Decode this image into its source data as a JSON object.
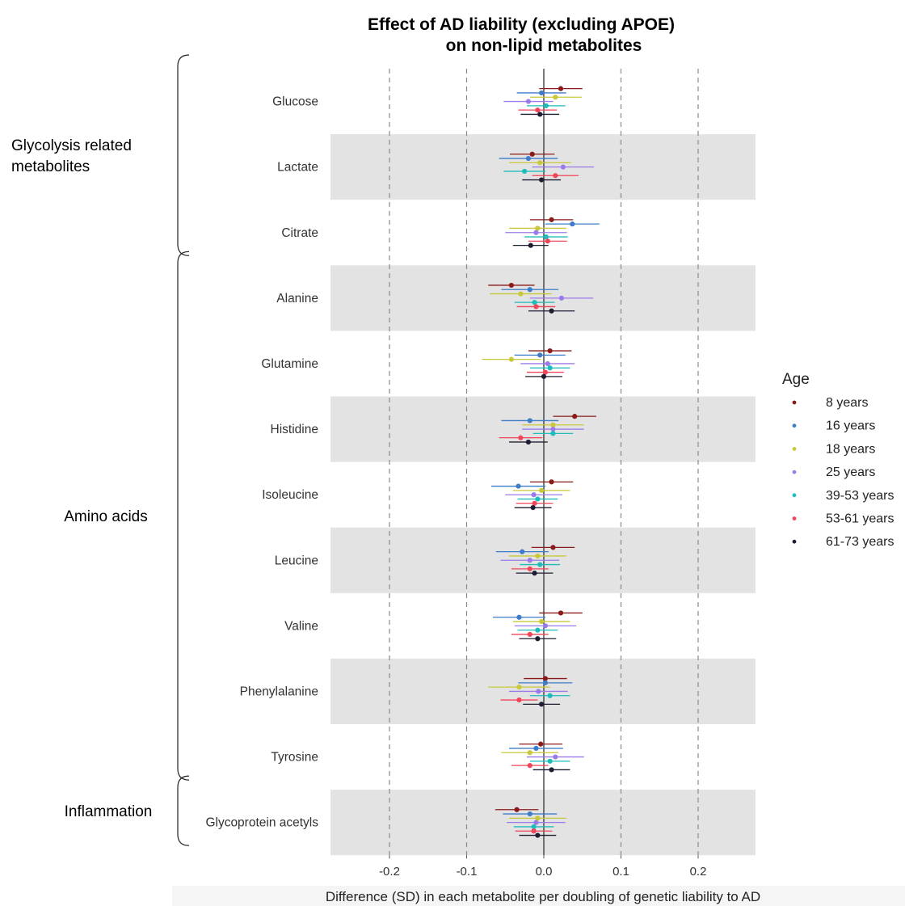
{
  "chart_data": {
    "type": "forest",
    "title_lines": [
      "Effect of AD liability (excluding APOE)",
      "on non-lipid metabolites"
    ],
    "xlabel": "Difference (SD) in each metabolite per doubling of genetic liability to AD",
    "xlim": [
      -0.28,
      0.28
    ],
    "xticks": [
      -0.2,
      -0.1,
      0.0,
      0.1,
      0.2
    ],
    "xtick_labels": [
      "-0.2",
      "-0.1",
      "0.0",
      "0.1",
      "0.2"
    ],
    "legend_title": "Age",
    "legend_position": "right",
    "series": [
      {
        "name": "8 years",
        "color": "#8b1a1a"
      },
      {
        "name": "16 years",
        "color": "#3d7cc9"
      },
      {
        "name": "18 years",
        "color": "#c8c83a"
      },
      {
        "name": "25 years",
        "color": "#9b7bea"
      },
      {
        "name": "39-53 years",
        "color": "#1fbcbc"
      },
      {
        "name": "53-61 years",
        "color": "#f2455a"
      },
      {
        "name": "61-73 years",
        "color": "#1e1e33"
      }
    ],
    "groups": [
      {
        "label": [
          "Glycolysis related",
          "metabolites"
        ],
        "first": 0,
        "last": 2
      },
      {
        "label": [
          "Amino acids"
        ],
        "first": 3,
        "last": 10
      },
      {
        "label": [
          "Inflammation"
        ],
        "first": 11,
        "last": 11
      }
    ],
    "metabolites": [
      {
        "name": "Glucose",
        "shaded": false,
        "points": [
          {
            "est": 0.022,
            "lo": -0.006,
            "hi": 0.05
          },
          {
            "est": -0.003,
            "lo": -0.035,
            "hi": 0.029
          },
          {
            "est": 0.015,
            "lo": -0.018,
            "hi": 0.049
          },
          {
            "est": -0.02,
            "lo": -0.052,
            "hi": 0.012
          },
          {
            "est": 0.003,
            "lo": -0.022,
            "hi": 0.028
          },
          {
            "est": -0.008,
            "lo": -0.033,
            "hi": 0.017
          },
          {
            "est": -0.005,
            "lo": -0.03,
            "hi": 0.02
          }
        ]
      },
      {
        "name": "Lactate",
        "shaded": true,
        "points": [
          {
            "est": -0.015,
            "lo": -0.044,
            "hi": 0.014
          },
          {
            "est": -0.02,
            "lo": -0.058,
            "hi": 0.018
          },
          {
            "est": -0.005,
            "lo": -0.045,
            "hi": 0.035
          },
          {
            "est": 0.025,
            "lo": -0.015,
            "hi": 0.065
          },
          {
            "est": -0.025,
            "lo": -0.052,
            "hi": 0.002
          },
          {
            "est": 0.015,
            "lo": -0.015,
            "hi": 0.045
          },
          {
            "est": -0.003,
            "lo": -0.028,
            "hi": 0.022
          }
        ]
      },
      {
        "name": "Citrate",
        "shaded": false,
        "points": [
          {
            "est": 0.01,
            "lo": -0.018,
            "hi": 0.038
          },
          {
            "est": 0.037,
            "lo": 0.002,
            "hi": 0.072
          },
          {
            "est": -0.008,
            "lo": -0.045,
            "hi": 0.029
          },
          {
            "est": -0.01,
            "lo": -0.05,
            "hi": 0.03
          },
          {
            "est": 0.003,
            "lo": -0.025,
            "hi": 0.031
          },
          {
            "est": 0.005,
            "lo": -0.02,
            "hi": 0.03
          },
          {
            "est": -0.017,
            "lo": -0.04,
            "hi": 0.006
          }
        ]
      },
      {
        "name": "Alanine",
        "shaded": true,
        "points": [
          {
            "est": -0.042,
            "lo": -0.072,
            "hi": -0.012
          },
          {
            "est": -0.018,
            "lo": -0.055,
            "hi": 0.019
          },
          {
            "est": -0.03,
            "lo": -0.07,
            "hi": 0.01
          },
          {
            "est": 0.023,
            "lo": -0.018,
            "hi": 0.064
          },
          {
            "est": -0.012,
            "lo": -0.038,
            "hi": 0.014
          },
          {
            "est": -0.01,
            "lo": -0.035,
            "hi": 0.015
          },
          {
            "est": 0.01,
            "lo": -0.02,
            "hi": 0.04
          }
        ]
      },
      {
        "name": "Glutamine",
        "shaded": false,
        "points": [
          {
            "est": 0.008,
            "lo": -0.02,
            "hi": 0.036
          },
          {
            "est": -0.005,
            "lo": -0.038,
            "hi": 0.028
          },
          {
            "est": -0.042,
            "lo": -0.08,
            "hi": -0.004
          },
          {
            "est": 0.005,
            "lo": -0.03,
            "hi": 0.04
          },
          {
            "est": 0.008,
            "lo": -0.018,
            "hi": 0.034
          },
          {
            "est": 0.002,
            "lo": -0.022,
            "hi": 0.026
          },
          {
            "est": 0.0,
            "lo": -0.024,
            "hi": 0.024
          }
        ]
      },
      {
        "name": "Histidine",
        "shaded": true,
        "points": [
          {
            "est": 0.04,
            "lo": 0.012,
            "hi": 0.068
          },
          {
            "est": -0.018,
            "lo": -0.055,
            "hi": 0.019
          },
          {
            "est": 0.012,
            "lo": -0.028,
            "hi": 0.052
          },
          {
            "est": 0.012,
            "lo": -0.028,
            "hi": 0.052
          },
          {
            "est": 0.012,
            "lo": -0.014,
            "hi": 0.038
          },
          {
            "est": -0.03,
            "lo": -0.058,
            "hi": -0.002
          },
          {
            "est": -0.02,
            "lo": -0.045,
            "hi": 0.005
          }
        ]
      },
      {
        "name": "Isoleucine",
        "shaded": false,
        "points": [
          {
            "est": 0.01,
            "lo": -0.018,
            "hi": 0.038
          },
          {
            "est": -0.033,
            "lo": -0.068,
            "hi": 0.002
          },
          {
            "est": -0.003,
            "lo": -0.04,
            "hi": 0.034
          },
          {
            "est": -0.013,
            "lo": -0.05,
            "hi": 0.024
          },
          {
            "est": -0.008,
            "lo": -0.034,
            "hi": 0.018
          },
          {
            "est": -0.012,
            "lo": -0.036,
            "hi": 0.012
          },
          {
            "est": -0.014,
            "lo": -0.038,
            "hi": 0.01
          }
        ]
      },
      {
        "name": "Leucine",
        "shaded": true,
        "points": [
          {
            "est": 0.012,
            "lo": -0.016,
            "hi": 0.04
          },
          {
            "est": -0.028,
            "lo": -0.062,
            "hi": 0.006
          },
          {
            "est": -0.008,
            "lo": -0.045,
            "hi": 0.029
          },
          {
            "est": -0.018,
            "lo": -0.056,
            "hi": 0.02
          },
          {
            "est": -0.005,
            "lo": -0.031,
            "hi": 0.021
          },
          {
            "est": -0.018,
            "lo": -0.042,
            "hi": 0.006
          },
          {
            "est": -0.012,
            "lo": -0.036,
            "hi": 0.012
          }
        ]
      },
      {
        "name": "Valine",
        "shaded": false,
        "points": [
          {
            "est": 0.022,
            "lo": -0.006,
            "hi": 0.05
          },
          {
            "est": -0.032,
            "lo": -0.066,
            "hi": 0.002
          },
          {
            "est": -0.003,
            "lo": -0.04,
            "hi": 0.034
          },
          {
            "est": 0.002,
            "lo": -0.038,
            "hi": 0.042
          },
          {
            "est": -0.008,
            "lo": -0.034,
            "hi": 0.018
          },
          {
            "est": -0.018,
            "lo": -0.042,
            "hi": 0.006
          },
          {
            "est": -0.008,
            "lo": -0.032,
            "hi": 0.016
          }
        ]
      },
      {
        "name": "Phenylalanine",
        "shaded": true,
        "points": [
          {
            "est": 0.002,
            "lo": -0.026,
            "hi": 0.03
          },
          {
            "est": 0.002,
            "lo": -0.033,
            "hi": 0.037
          },
          {
            "est": -0.032,
            "lo": -0.072,
            "hi": 0.008
          },
          {
            "est": -0.007,
            "lo": -0.045,
            "hi": 0.031
          },
          {
            "est": 0.008,
            "lo": -0.018,
            "hi": 0.034
          },
          {
            "est": -0.032,
            "lo": -0.056,
            "hi": -0.008
          },
          {
            "est": -0.003,
            "lo": -0.027,
            "hi": 0.021
          }
        ]
      },
      {
        "name": "Tyrosine",
        "shaded": false,
        "points": [
          {
            "est": -0.004,
            "lo": -0.032,
            "hi": 0.024
          },
          {
            "est": -0.01,
            "lo": -0.045,
            "hi": 0.025
          },
          {
            "est": -0.018,
            "lo": -0.055,
            "hi": 0.019
          },
          {
            "est": 0.015,
            "lo": -0.022,
            "hi": 0.052
          },
          {
            "est": 0.008,
            "lo": -0.018,
            "hi": 0.034
          },
          {
            "est": -0.018,
            "lo": -0.042,
            "hi": 0.006
          },
          {
            "est": 0.01,
            "lo": -0.014,
            "hi": 0.034
          }
        ]
      },
      {
        "name": "Glycoprotein acetyls",
        "shaded": true,
        "points": [
          {
            "est": -0.035,
            "lo": -0.063,
            "hi": -0.007
          },
          {
            "est": -0.018,
            "lo": -0.053,
            "hi": 0.017
          },
          {
            "est": -0.008,
            "lo": -0.045,
            "hi": 0.029
          },
          {
            "est": -0.01,
            "lo": -0.048,
            "hi": 0.028
          },
          {
            "est": -0.013,
            "lo": -0.039,
            "hi": 0.013
          },
          {
            "est": -0.013,
            "lo": -0.037,
            "hi": 0.011
          },
          {
            "est": -0.008,
            "lo": -0.032,
            "hi": 0.016
          }
        ]
      }
    ]
  }
}
